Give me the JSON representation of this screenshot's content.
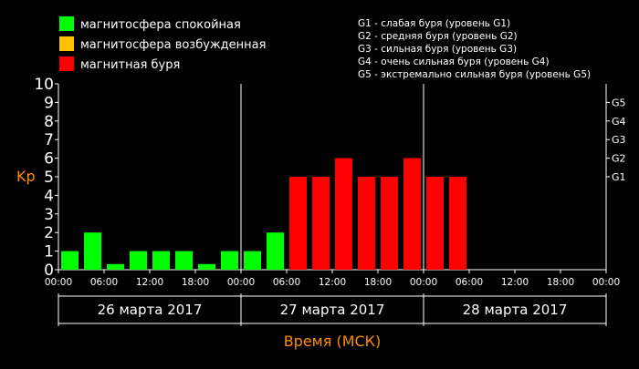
{
  "legend": {
    "items": [
      {
        "label": "магнитосфера спокойная",
        "color": "#00ff00"
      },
      {
        "label": "магнитосфера возбужденная",
        "color": "#ffc000"
      },
      {
        "label": "магнитная буря",
        "color": "#ff0000"
      }
    ],
    "levels": [
      "G1 - слабая буря (уровень G1)",
      "G2 - средняя буря (уровень G2)",
      "G3 - сильная буря (уровень G3)",
      "G4 - очень сильная буря (уровень G4)",
      "G5 - экстремально сильная буря (уровень G5)"
    ]
  },
  "colors": {
    "background": "#000000",
    "quiet": "#00ff00",
    "storm": "#ff0000",
    "axis_label": "#ff8c00",
    "text": "#ffffff"
  },
  "chart_data": {
    "type": "bar",
    "ylabel": "Kp",
    "xlabel": "Время (МСК)",
    "ylim": [
      0,
      10
    ],
    "yticks": [
      "0",
      "1",
      "2",
      "3",
      "4",
      "5",
      "6",
      "7",
      "8",
      "9",
      "10"
    ],
    "right_ticks": [
      {
        "label": "G1",
        "value": 5
      },
      {
        "label": "G2",
        "value": 6
      },
      {
        "label": "G3",
        "value": 7
      },
      {
        "label": "G4",
        "value": 8
      },
      {
        "label": "G5",
        "value": 9
      }
    ],
    "time_ticks": [
      "00:00",
      "06:00",
      "12:00",
      "18:00",
      "00:00",
      "06:00",
      "12:00",
      "18:00",
      "00:00",
      "06:00",
      "12:00",
      "18:00",
      "00:00"
    ],
    "days": [
      "26 марта 2017",
      "27 марта 2017",
      "28 марта 2017"
    ],
    "bars_per_day": 8,
    "total_slots": 24,
    "values": [
      1,
      2,
      0.3,
      1,
      1,
      1,
      0.3,
      1,
      1,
      2,
      5,
      5,
      6,
      5,
      5,
      6,
      5,
      5
    ],
    "categories": [
      "quiet",
      "quiet",
      "quiet",
      "quiet",
      "quiet",
      "quiet",
      "quiet",
      "quiet",
      "quiet",
      "quiet",
      "storm",
      "storm",
      "storm",
      "storm",
      "storm",
      "storm",
      "storm",
      "storm"
    ]
  }
}
